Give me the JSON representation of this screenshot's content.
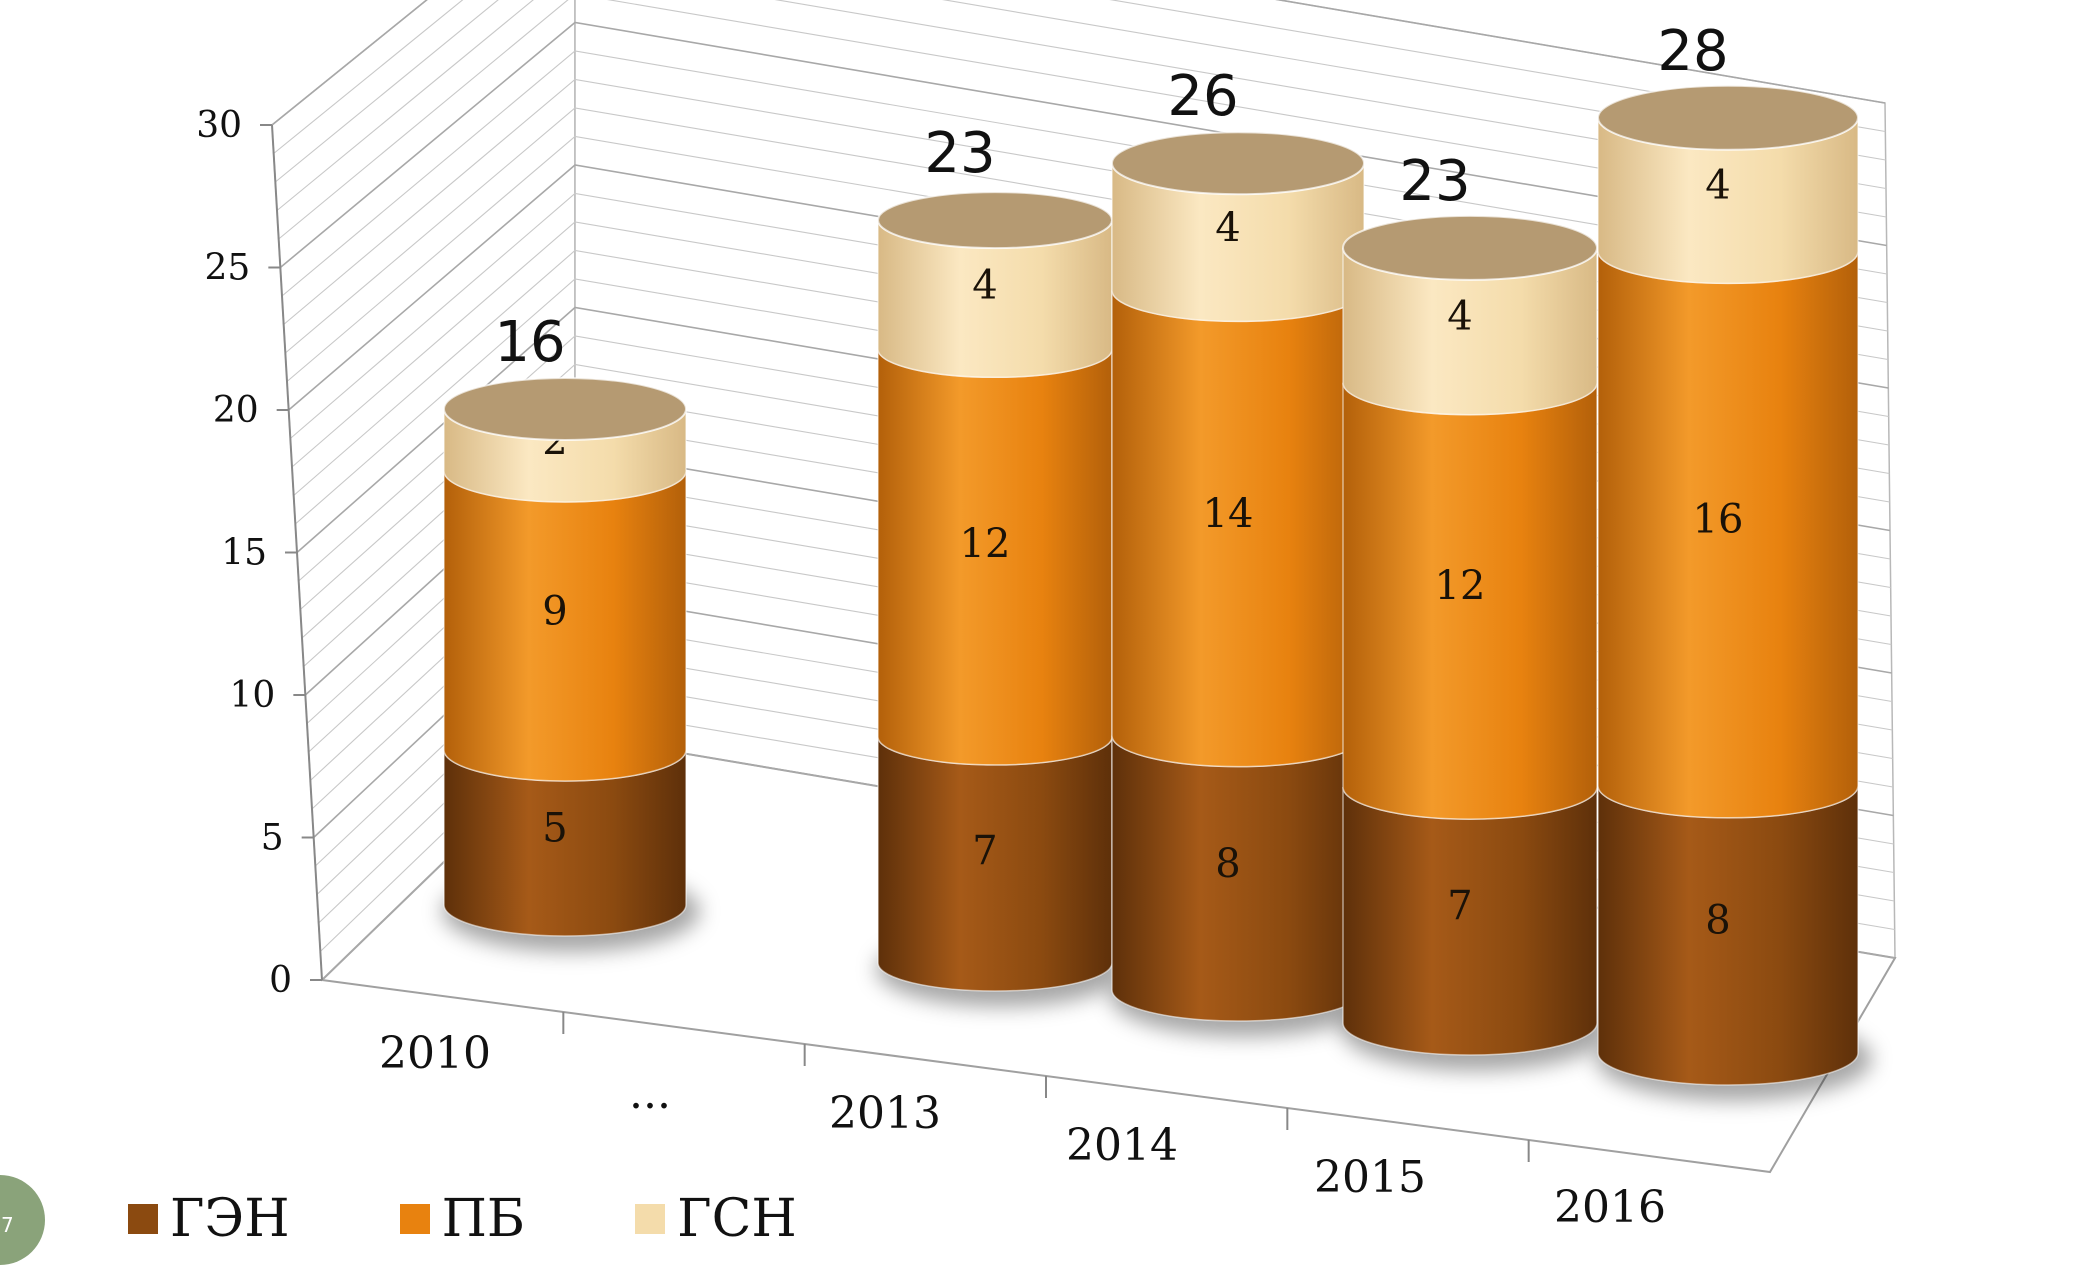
{
  "page": {
    "slide_number": "7"
  },
  "chart_data": {
    "type": "bar",
    "stacked": true,
    "style_3d": "cylinder",
    "categories": [
      "2010",
      "...",
      "2013",
      "2014",
      "2015",
      "2016"
    ],
    "series": [
      {
        "name": "ГЭН",
        "color": "#8b4a10",
        "values": [
          5,
          null,
          7,
          8,
          7,
          8
        ]
      },
      {
        "name": "ПБ",
        "color": "#e8820f",
        "values": [
          9,
          null,
          12,
          14,
          12,
          16
        ]
      },
      {
        "name": "ГСН",
        "color": "#f4dcab",
        "values": [
          2,
          null,
          4,
          4,
          4,
          4
        ]
      }
    ],
    "totals": [
      16,
      null,
      23,
      26,
      23,
      28
    ],
    "ylim": [
      0,
      30
    ],
    "yticks": [
      0,
      5,
      10,
      15,
      20,
      25,
      30
    ],
    "grid": true,
    "legend_position": "bottom-left",
    "title": "",
    "xlabel": "",
    "ylabel": ""
  }
}
